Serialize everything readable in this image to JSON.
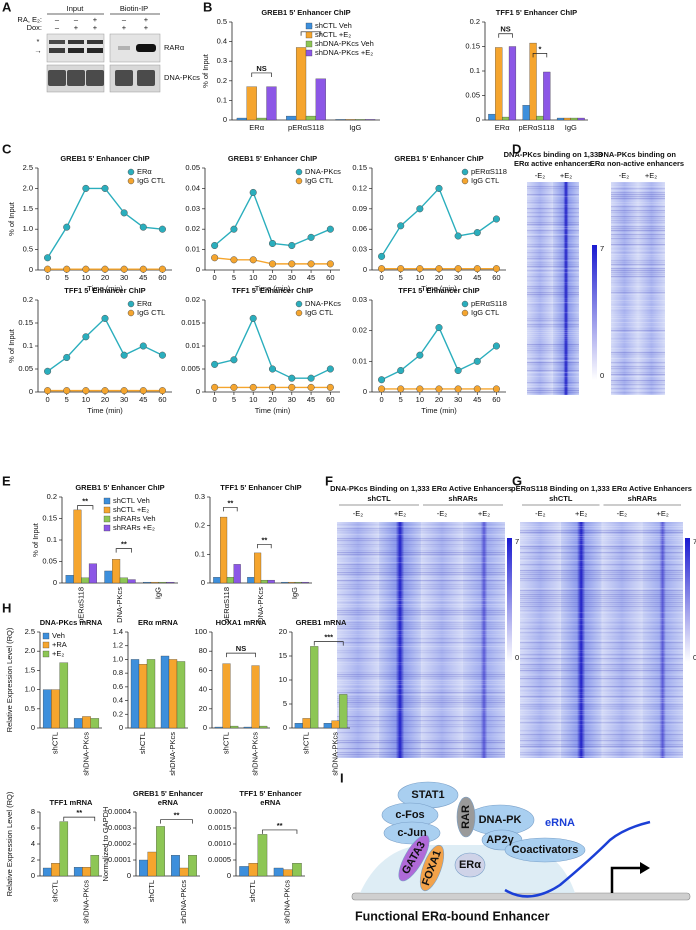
{
  "panel_labels": [
    "A",
    "B",
    "C",
    "D",
    "E",
    "F",
    "G",
    "H",
    "I"
  ],
  "blot": {
    "headers": [
      "Input",
      "Biotin-IP"
    ],
    "rows": [
      {
        "label": "RA, E₂:",
        "marks": [
          "–",
          "–",
          "+",
          "–",
          "+"
        ]
      },
      {
        "label": "Dox:",
        "marks": [
          "–",
          "+",
          "+",
          "+",
          "+"
        ]
      }
    ],
    "bands": [
      "RARα",
      "DNA-PKcs"
    ],
    "markers": [
      "*",
      "→"
    ]
  },
  "heatmaps": {
    "D": {
      "titles": [
        [
          "DNA-PKcs binding on 1,333",
          "ERα active enhancers"
        ],
        [
          "DNA-PKcs binding on",
          "ERα non-active enhancers"
        ]
      ],
      "columns": [
        "-E₂",
        "+E₂",
        "-E₂",
        "+E₂"
      ],
      "scale": [
        "7",
        "0"
      ]
    },
    "F": {
      "title": "DNA-PKcs Binding on 1,333 ERα Active Enhancers",
      "groups": [
        "shCTL",
        "shRARs"
      ],
      "columns": [
        "-E₂",
        "+E₂",
        "-E₂",
        "+E₂"
      ],
      "scale": [
        "7",
        "0"
      ]
    },
    "G": {
      "title": "pERαS118 Binding on 1,333 ERα Active Enhancers",
      "groups": [
        "shCTL",
        "shRARs"
      ],
      "columns": [
        "-E₂",
        "+E₂",
        "-E₂",
        "+E₂"
      ],
      "scale": [
        "7",
        "0"
      ]
    }
  },
  "diagram": {
    "labels": [
      "STAT1",
      "c-Fos",
      "c-Jun",
      "DNA-PK",
      "RAR",
      "AP2γ",
      "Coactivators",
      "GATA3",
      "FOXA1",
      "ERα",
      "eRNA"
    ],
    "title": "Functional ERα-bound Enhancer"
  },
  "chart_data": [
    {
      "type": "bar",
      "title": "GREB1 5' Enhancer ChIP",
      "ylabel": "% of Input",
      "categories": [
        "ERα",
        "pERαS118",
        "IgG"
      ],
      "series": [
        {
          "name": "shCTL Veh",
          "color": "#3d8fdc",
          "values": [
            0.01,
            0.02,
            0.003
          ]
        },
        {
          "name": "shCTL +E₂",
          "color": "#f5a52e",
          "values": [
            0.17,
            0.37,
            0.003
          ]
        },
        {
          "name": "shDNA-PKcs Veh",
          "color": "#8dc655",
          "values": [
            0.01,
            0.02,
            0.003
          ]
        },
        {
          "name": "shDNA-PKcs +E₂",
          "color": "#8c57e6",
          "values": [
            0.17,
            0.21,
            0.003
          ]
        }
      ],
      "ylim": [
        0,
        0.5
      ],
      "yticks": [
        0,
        0.1,
        0.2,
        0.3,
        0.4,
        0.5
      ],
      "legend": "upper right",
      "annotations": [
        "NS",
        "*"
      ]
    },
    {
      "type": "bar",
      "title": "TFF1 5' Enhancer ChIP",
      "categories": [
        "ERα",
        "pERαS118",
        "IgG"
      ],
      "series": [
        {
          "color": "#3d8fdc",
          "values": [
            0.012,
            0.03,
            0.004
          ]
        },
        {
          "color": "#f5a52e",
          "values": [
            0.148,
            0.157,
            0.004
          ]
        },
        {
          "color": "#8dc655",
          "values": [
            0.006,
            0.008,
            0.004
          ]
        },
        {
          "color": "#8c57e6",
          "values": [
            0.15,
            0.098,
            0.004
          ]
        }
      ],
      "ylim": [
        0,
        0.2
      ],
      "yticks": [
        0,
        0.05,
        0.1,
        0.15,
        0.2
      ],
      "annotations": [
        "NS",
        "*"
      ]
    },
    {
      "type": "line",
      "title": "GREB1 5' Enhancer ChIP",
      "ylabel": "% of Input",
      "xlabel": "Time (min)",
      "categories": [
        "0",
        "5",
        "10",
        "20",
        "30",
        "45",
        "60"
      ],
      "series": [
        {
          "name": "ERα",
          "color": "#2aaebd",
          "values": [
            0.3,
            1.05,
            2.0,
            2.0,
            1.4,
            1.05,
            1.0
          ]
        },
        {
          "name": "IgG CTL",
          "color": "#f5a52e",
          "values": [
            0.02,
            0.02,
            0.02,
            0.02,
            0.02,
            0.02,
            0.02
          ]
        }
      ],
      "ylim": [
        0,
        2.5
      ],
      "yticks": [
        0,
        0.5,
        {
          "value": 1,
          "label": "1.0"
        },
        1.5,
        {
          "value": 2,
          "label": "2.0"
        },
        2.5
      ],
      "legend": "upper right"
    },
    {
      "type": "line",
      "title": "GREB1 5' Enhancer ChIP",
      "xlabel": "Time (min)",
      "categories": [
        "0",
        "5",
        "10",
        "20",
        "30",
        "45",
        "60"
      ],
      "series": [
        {
          "name": "DNA-PKcs",
          "color": "#2aaebd",
          "values": [
            0.012,
            0.02,
            0.038,
            0.013,
            0.012,
            0.016,
            0.02
          ]
        },
        {
          "name": "IgG CTL",
          "color": "#f5a52e",
          "values": [
            0.006,
            0.005,
            0.005,
            0.003,
            0.003,
            0.003,
            0.003
          ]
        }
      ],
      "ylim": [
        0,
        0.05
      ],
      "yticks": [
        0,
        0.01,
        0.02,
        0.03,
        0.04,
        0.05
      ],
      "legend": "upper right"
    },
    {
      "type": "line",
      "title": "GREB1 5' Enhancer ChIP",
      "xlabel": "Time (min)",
      "categories": [
        "0",
        "5",
        "10",
        "20",
        "30",
        "45",
        "60"
      ],
      "series": [
        {
          "name": "pERαS118",
          "color": "#2aaebd",
          "values": [
            0.02,
            0.065,
            0.09,
            0.12,
            0.05,
            0.055,
            0.075
          ]
        },
        {
          "name": "IgG CTL",
          "color": "#f5a52e",
          "values": [
            0.002,
            0.002,
            0.002,
            0.002,
            0.002,
            0.002,
            0.002
          ]
        }
      ],
      "ylim": [
        0,
        0.15
      ],
      "yticks": [
        0,
        0.03,
        0.06,
        0.09,
        0.12,
        0.15
      ],
      "legend": "upper right"
    },
    {
      "type": "line",
      "title": "TFF1 5' Enhancer ChIP",
      "ylabel": "% of Input",
      "xlabel": "Time (min)",
      "categories": [
        "0",
        "5",
        "10",
        "20",
        "30",
        "45",
        "60"
      ],
      "series": [
        {
          "name": "ERα",
          "color": "#2aaebd",
          "values": [
            0.045,
            0.075,
            0.12,
            0.16,
            0.08,
            0.1,
            0.08
          ]
        },
        {
          "name": "IgG CTL",
          "color": "#f5a52e",
          "values": [
            0.003,
            0.003,
            0.003,
            0.003,
            0.003,
            0.003,
            0.003
          ]
        }
      ],
      "ylim": [
        0,
        0.2
      ],
      "yticks": [
        0,
        0.05,
        0.1,
        0.15,
        0.2
      ],
      "legend": "upper right"
    },
    {
      "type": "line",
      "title": "TFF1 5' Enhancer ChIP",
      "xlabel": "Time (min)",
      "categories": [
        "0",
        "5",
        "10",
        "20",
        "30",
        "45",
        "60"
      ],
      "series": [
        {
          "name": "DNA-PKcs",
          "color": "#2aaebd",
          "values": [
            0.006,
            0.007,
            0.016,
            0.005,
            0.003,
            0.003,
            0.005
          ]
        },
        {
          "name": "IgG CTL",
          "color": "#f5a52e",
          "values": [
            0.001,
            0.001,
            0.001,
            0.001,
            0.001,
            0.001,
            0.001
          ]
        }
      ],
      "ylim": [
        0,
        0.02
      ],
      "yticks": [
        0,
        0.005,
        0.01,
        0.015,
        0.02
      ],
      "legend": "upper right"
    },
    {
      "type": "line",
      "title": "TFF1 5' Enhancer ChIP",
      "xlabel": "Time (min)",
      "categories": [
        "0",
        "5",
        "10",
        "20",
        "30",
        "45",
        "60"
      ],
      "series": [
        {
          "name": "pERαS118",
          "color": "#2aaebd",
          "values": [
            0.004,
            0.007,
            0.012,
            0.021,
            0.007,
            0.01,
            0.015
          ]
        },
        {
          "name": "IgG CTL",
          "color": "#f5a52e",
          "values": [
            0.001,
            0.001,
            0.001,
            0.001,
            0.001,
            0.001,
            0.001
          ]
        }
      ],
      "ylim": [
        0,
        0.03
      ],
      "yticks": [
        0,
        0.01,
        0.02,
        0.03
      ],
      "legend": "upper right"
    },
    {
      "type": "bar",
      "title": "GREB1 5' Enhancer ChIP",
      "ylabel": "% of Input",
      "categories": [
        "pERαS118",
        "DNA-PKcs",
        "IgG"
      ],
      "xtick_rotation": 90,
      "series": [
        {
          "name": "shCTL Veh",
          "color": "#3d8fdc",
          "values": [
            0.018,
            0.028,
            0.002
          ]
        },
        {
          "name": "shCTL +E₂",
          "color": "#f5a52e",
          "values": [
            0.17,
            0.055,
            0.002
          ]
        },
        {
          "name": "shRARs Veh",
          "color": "#8dc655",
          "values": [
            0.012,
            0.012,
            0.002
          ]
        },
        {
          "name": "shRARs +E₂",
          "color": "#8c57e6",
          "values": [
            0.045,
            0.008,
            0.002
          ]
        }
      ],
      "ylim": [
        0,
        0.2
      ],
      "yticks": [
        0,
        0.05,
        0.1,
        0.15,
        0.2
      ],
      "legend": "upper right",
      "annotations": [
        "**",
        "**"
      ]
    },
    {
      "type": "bar",
      "title": "TFF1 5' Enhancer ChIP",
      "categories": [
        "pERαS118",
        "DNA-PKcs",
        "IgG"
      ],
      "xtick_rotation": 90,
      "series": [
        {
          "color": "#3d8fdc",
          "values": [
            0.02,
            0.02,
            0.003
          ]
        },
        {
          "color": "#f5a52e",
          "values": [
            0.23,
            0.105,
            0.003
          ]
        },
        {
          "color": "#8dc655",
          "values": [
            0.02,
            0.01,
            0.003
          ]
        },
        {
          "color": "#8c57e6",
          "values": [
            0.065,
            0.01,
            0.003
          ]
        }
      ],
      "ylim": [
        0,
        0.3
      ],
      "yticks": [
        0,
        0.1,
        0.2,
        0.3
      ],
      "annotations": [
        "**",
        "**"
      ]
    },
    {
      "type": "bar",
      "title": "DNA-PKcs mRNA",
      "ylabel": "Relative Expression Level (RQ)",
      "categories": [
        "shCTL",
        "shDNA-PKcs"
      ],
      "xtick_rotation": 90,
      "series": [
        {
          "name": "Veh",
          "color": "#3d8fdc",
          "values": [
            1.0,
            0.25
          ]
        },
        {
          "name": "+RA",
          "color": "#f5a52e",
          "values": [
            1.0,
            0.3
          ]
        },
        {
          "name": "+E₂",
          "color": "#8dc655",
          "values": [
            1.7,
            0.25
          ]
        }
      ],
      "ylim": [
        0,
        2.5
      ],
      "yticks": [
        0,
        0.5,
        {
          "value": 1,
          "label": "1.0"
        },
        1.5,
        {
          "value": 2,
          "label": "2.0"
        },
        2.5
      ],
      "legend": "upper left"
    },
    {
      "type": "bar",
      "title": "ERα mRNA",
      "categories": [
        "shCTL",
        "shDNA-PKcs"
      ],
      "xtick_rotation": 90,
      "series": [
        {
          "color": "#3d8fdc",
          "values": [
            1.0,
            1.05
          ]
        },
        {
          "color": "#f5a52e",
          "values": [
            0.93,
            1.0
          ]
        },
        {
          "color": "#8dc655",
          "values": [
            1.0,
            0.97
          ]
        }
      ],
      "ylim": [
        0,
        1.4
      ],
      "yticks": [
        0,
        0.2,
        0.4,
        0.6,
        0.8,
        {
          "value": 1,
          "label": "1.0"
        },
        1.2,
        1.4
      ]
    },
    {
      "type": "bar",
      "title": "HOXA1 mRNA",
      "categories": [
        "shCTL",
        "shDNA-PKcs"
      ],
      "xtick_rotation": 90,
      "series": [
        {
          "color": "#3d8fdc",
          "values": [
            1,
            1
          ]
        },
        {
          "color": "#f5a52e",
          "values": [
            67,
            65
          ]
        },
        {
          "color": "#8dc655",
          "values": [
            2,
            2
          ]
        }
      ],
      "ylim": [
        0,
        100
      ],
      "yticks": [
        0,
        20,
        40,
        60,
        80,
        100
      ],
      "annotations": [
        "NS"
      ]
    },
    {
      "type": "bar",
      "title": "GREB1 mRNA",
      "categories": [
        "shCTL",
        "shDNA-PKcs"
      ],
      "xtick_rotation": 90,
      "series": [
        {
          "color": "#3d8fdc",
          "values": [
            1,
            1
          ]
        },
        {
          "color": "#f5a52e",
          "values": [
            2,
            1.5
          ]
        },
        {
          "color": "#8dc655",
          "values": [
            17,
            7
          ]
        }
      ],
      "ylim": [
        0,
        20
      ],
      "yticks": [
        0,
        5,
        10,
        15,
        20
      ],
      "annotations": [
        "***"
      ]
    },
    {
      "type": "bar",
      "title": "TFF1 mRNA",
      "ylabel": "Relative Expression Level (RQ)",
      "categories": [
        "shCTL",
        "shDNA-PKcs"
      ],
      "xtick_rotation": 90,
      "series": [
        {
          "color": "#3d8fdc",
          "values": [
            1,
            1.1
          ]
        },
        {
          "color": "#f5a52e",
          "values": [
            1.6,
            1.1
          ]
        },
        {
          "color": "#8dc655",
          "values": [
            6.8,
            2.6
          ]
        }
      ],
      "ylim": [
        0,
        8
      ],
      "yticks": [
        0,
        2,
        4,
        6,
        8
      ],
      "annotations": [
        "**"
      ]
    },
    {
      "type": "bar",
      "title": "GREB1 5' Enhancer",
      "subtitle": "eRNA",
      "ylabel": "Normalized to GAPDH",
      "categories": [
        "shCTL",
        "shDNA-PKcs"
      ],
      "xtick_rotation": 90,
      "series": [
        {
          "color": "#3d8fdc",
          "values": [
            0.0001,
            0.00013
          ]
        },
        {
          "color": "#f5a52e",
          "values": [
            0.00015,
            5e-05
          ]
        },
        {
          "color": "#8dc655",
          "values": [
            0.00031,
            0.00013
          ]
        }
      ],
      "ylim": [
        0,
        0.0004
      ],
      "yticks": [
        0,
        0.0001,
        0.0002,
        0.0003,
        0.0004
      ],
      "annotations": [
        "**"
      ]
    },
    {
      "type": "bar",
      "title": "TFF1 5' Enhancer",
      "subtitle": "eRNA",
      "categories": [
        "shCTL",
        "shDNA-PKcs"
      ],
      "xtick_rotation": 90,
      "series": [
        {
          "color": "#3d8fdc",
          "values": [
            0.0003,
            0.00025
          ]
        },
        {
          "color": "#f5a52e",
          "values": [
            0.0004,
            0.0002
          ]
        },
        {
          "color": "#8dc655",
          "values": [
            0.0013,
            0.0004
          ]
        }
      ],
      "ylim": [
        0,
        0.002
      ],
      "yticks": [
        0,
        {
          "value": 0.0005,
          "label": "0.0005"
        },
        {
          "value": 0.001,
          "label": "0.0010"
        },
        {
          "value": 0.0015,
          "label": "0.0015"
        },
        {
          "value": 0.002,
          "label": "0.0020"
        }
      ],
      "annotations": [
        "**"
      ]
    }
  ]
}
